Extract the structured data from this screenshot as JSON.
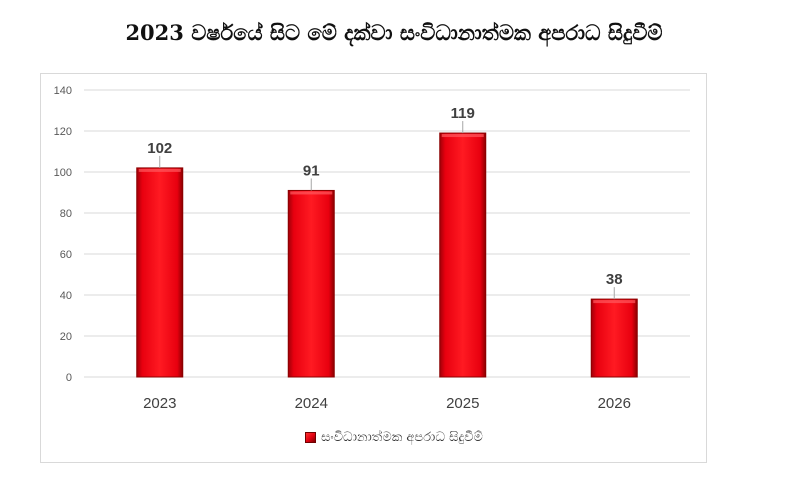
{
  "chart_data": {
    "type": "bar",
    "title": "2023 වර්ෂයේ සිට මේ දක්වා සංවිධානාත්මක අපරාධ සිදුවීම්",
    "categories": [
      "2023",
      "2024",
      "2025",
      "2026"
    ],
    "series": [
      {
        "name": "සංවිධානාත්මක අපරාධ සිදුවීම්",
        "values": [
          102,
          91,
          119,
          38
        ]
      }
    ],
    "data_labels": [
      "102",
      "91",
      "119",
      "38"
    ],
    "y_ticks": [
      "0",
      "20",
      "40",
      "60",
      "80",
      "100",
      "120",
      "140"
    ],
    "ylim": [
      0,
      140
    ],
    "xlabel": "",
    "ylabel": "",
    "grid": true,
    "legend_position": "bottom",
    "colors": {
      "bar": "#e8000f",
      "bar_dark": "#8b0000",
      "grid": "#d9d9d9",
      "label": "#404040"
    }
  }
}
